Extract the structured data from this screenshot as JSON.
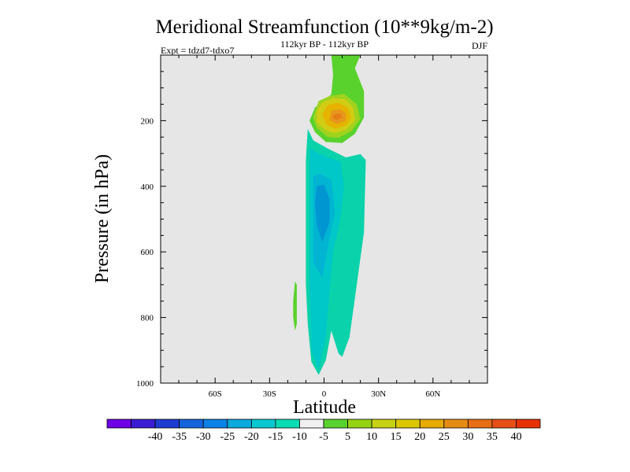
{
  "chart_data": {
    "type": "contour",
    "title": "Meridional Streamfunction (10**9kg/m-2)",
    "subtitle": "112kyr BP - 112kyr BP",
    "left_label": "Expt = tdzd7-tdxo7",
    "right_label": "DJF",
    "xlabel": "Latitude",
    "ylabel": "Pressure (in hPa)",
    "xlim": [
      -90,
      90
    ],
    "ylim": [
      0,
      1000
    ],
    "y_inverted": true,
    "x_ticks": [
      {
        "value": -60,
        "label": "60S"
      },
      {
        "value": -30,
        "label": "30S"
      },
      {
        "value": 0,
        "label": "0"
      },
      {
        "value": 30,
        "label": "30N"
      },
      {
        "value": 60,
        "label": "60N"
      }
    ],
    "y_ticks": [
      {
        "value": 200,
        "label": "200"
      },
      {
        "value": 400,
        "label": "400"
      },
      {
        "value": 600,
        "label": "600"
      },
      {
        "value": 800,
        "label": "800"
      },
      {
        "value": 1000,
        "label": "1000"
      }
    ],
    "background_color": "#e6e6e6",
    "regions": [
      {
        "name": "positive-tower",
        "level": 5,
        "color": "#5ad22d",
        "points": [
          [
            4,
            0
          ],
          [
            20,
            0
          ],
          [
            17,
            40
          ],
          [
            22,
            110
          ],
          [
            22,
            190
          ],
          [
            17,
            240
          ],
          [
            10,
            268
          ],
          [
            1,
            265
          ],
          [
            -5,
            235
          ],
          [
            -8,
            200
          ],
          [
            -5,
            160
          ],
          [
            4,
            120
          ],
          [
            5,
            60
          ]
        ]
      },
      {
        "name": "positive-10",
        "level": 10,
        "color": "#a0d21e",
        "points": [
          [
            -3,
            140
          ],
          [
            3,
            125
          ],
          [
            11,
            118
          ],
          [
            18,
            150
          ],
          [
            20,
            195
          ],
          [
            15,
            232
          ],
          [
            8,
            252
          ],
          [
            2,
            250
          ],
          [
            -4,
            222
          ],
          [
            -6,
            190
          ]
        ]
      },
      {
        "name": "positive-15",
        "level": 15,
        "color": "#d2cd14",
        "points": [
          [
            -1,
            145
          ],
          [
            5,
            132
          ],
          [
            12,
            135
          ],
          [
            16,
            160
          ],
          [
            17,
            200
          ],
          [
            12,
            228
          ],
          [
            6,
            238
          ],
          [
            1,
            230
          ],
          [
            -4,
            205
          ],
          [
            -4,
            170
          ]
        ]
      },
      {
        "name": "positive-20",
        "level": 20,
        "color": "#e6b400",
        "points": [
          [
            2,
            152
          ],
          [
            8,
            145
          ],
          [
            13,
            160
          ],
          [
            15,
            190
          ],
          [
            12,
            215
          ],
          [
            6,
            225
          ],
          [
            1,
            210
          ],
          [
            -1,
            180
          ]
        ]
      },
      {
        "name": "positive-25",
        "level": 25,
        "color": "#e6961e",
        "points": [
          [
            4,
            170
          ],
          [
            9,
            165
          ],
          [
            12,
            178
          ],
          [
            12,
            200
          ],
          [
            7,
            210
          ],
          [
            3,
            198
          ]
        ]
      },
      {
        "name": "positive-30",
        "level": 30,
        "color": "#e67d14",
        "points": [
          [
            5,
            182
          ],
          [
            9,
            178
          ],
          [
            10,
            190
          ],
          [
            7,
            198
          ],
          [
            5,
            192
          ]
        ]
      },
      {
        "name": "negative-5",
        "level": -5,
        "color": "#0ad2aa",
        "points": [
          [
            -9,
            225
          ],
          [
            -6,
            260
          ],
          [
            2,
            285
          ],
          [
            12,
            312
          ],
          [
            20,
            302
          ],
          [
            23,
            320
          ],
          [
            22,
            540
          ],
          [
            18,
            700
          ],
          [
            14,
            860
          ],
          [
            10,
            920
          ],
          [
            8,
            910
          ],
          [
            4,
            840
          ],
          [
            1,
            930
          ],
          [
            -3,
            975
          ],
          [
            -7,
            935
          ],
          [
            -9,
            820
          ],
          [
            -10,
            700
          ],
          [
            -10,
            500
          ],
          [
            -10,
            320
          ]
        ]
      },
      {
        "name": "negative-10",
        "level": -10,
        "color": "#00c8c8",
        "points": [
          [
            -8,
            285
          ],
          [
            -3,
            300
          ],
          [
            4,
            315
          ],
          [
            9,
            325
          ],
          [
            11,
            400
          ],
          [
            9,
            500
          ],
          [
            5,
            600
          ],
          [
            3,
            720
          ],
          [
            1,
            860
          ],
          [
            -3,
            960
          ],
          [
            -7,
            900
          ],
          [
            -8,
            700
          ],
          [
            -8,
            450
          ]
        ]
      },
      {
        "name": "negative-15",
        "level": -15,
        "color": "#00b4d2",
        "points": [
          [
            -6,
            370
          ],
          [
            -2,
            362
          ],
          [
            4,
            380
          ],
          [
            6,
            480
          ],
          [
            3,
            560
          ],
          [
            -1,
            680
          ],
          [
            -6,
            630
          ],
          [
            -6,
            480
          ]
        ]
      },
      {
        "name": "negative-20",
        "level": -20,
        "color": "#0096d2",
        "points": [
          [
            -4,
            400
          ],
          [
            0,
            395
          ],
          [
            3,
            440
          ],
          [
            3,
            510
          ],
          [
            -1,
            570
          ],
          [
            -4,
            520
          ],
          [
            -5,
            450
          ]
        ]
      },
      {
        "name": "small-positive-patch",
        "level": 5,
        "color": "#5ad22d",
        "points": [
          [
            -16,
            690
          ],
          [
            -15,
            700
          ],
          [
            -15,
            820
          ],
          [
            -16,
            840
          ],
          [
            -17,
            800
          ],
          [
            -17,
            750
          ]
        ]
      }
    ],
    "colorbar": {
      "colors": [
        "#6e00e6",
        "#3c1ed2",
        "#1e3cd2",
        "#1464dc",
        "#0a82e6",
        "#0aaadc",
        "#0ac8d2",
        "#0adcb4",
        "#f0f0f0",
        "#5ad22d",
        "#96d214",
        "#c8d214",
        "#dcc800",
        "#e6aa00",
        "#e68c14",
        "#e66e14",
        "#e65014",
        "#e63200"
      ],
      "labels": [
        "-40",
        "-35",
        "-30",
        "-25",
        "-20",
        "-15",
        "-10",
        "-5",
        "5",
        "10",
        "15",
        "20",
        "25",
        "30",
        "35",
        "40"
      ]
    }
  }
}
